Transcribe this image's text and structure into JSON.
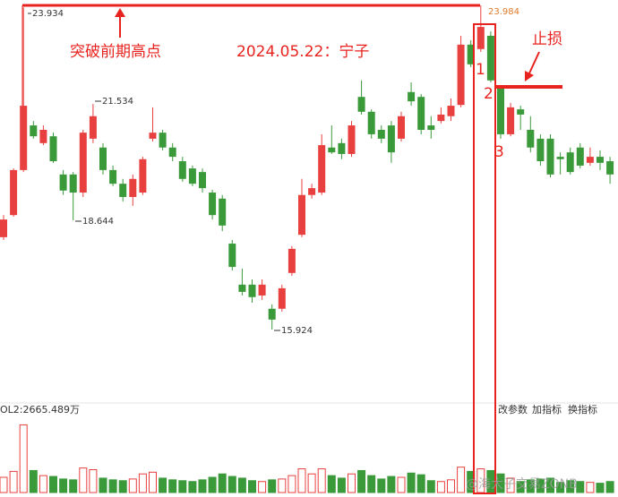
{
  "chart_data": {
    "type": "candlestick",
    "open": [
      18.22,
      18.77,
      19.89,
      21.0,
      20.56,
      20.73,
      19.78,
      19.78,
      19.33,
      20.67,
      20.45,
      19.89,
      19.55,
      19.22,
      19.33,
      20.67,
      20.82,
      20.45,
      20.11,
      19.93,
      19.84,
      19.33,
      19.18,
      18.06,
      17.04,
      17.04,
      16.77,
      16.44,
      16.44,
      17.33,
      18.28,
      19.27,
      19.33,
      20.45,
      20.56,
      20.29,
      21.71,
      21.34,
      20.89,
      21.0,
      20.67,
      21.83,
      21.71,
      21.0,
      21.11,
      21.23,
      21.51,
      23.01,
      22.9,
      23.23,
      21.94,
      20.78,
      21.4,
      20.89,
      20.67,
      20.67,
      20.22,
      20.33,
      20.45,
      20.07,
      20.22,
      20.11
    ],
    "high": [
      18.77,
      19.93,
      23.934,
      21.11,
      21.0,
      20.82,
      19.89,
      19.84,
      20.89,
      21.534,
      20.56,
      20.0,
      19.67,
      19.78,
      20.22,
      21.45,
      20.89,
      20.56,
      20.22,
      20.0,
      19.93,
      19.4,
      19.27,
      18.15,
      17.44,
      17.17,
      17.17,
      16.55,
      17.04,
      18.0,
      19.67,
      19.55,
      20.78,
      21.0,
      20.67,
      21.11,
      22.12,
      21.4,
      21.0,
      21.11,
      21.34,
      22.07,
      21.78,
      21.23,
      21.45,
      21.67,
      23.23,
      23.12,
      23.984,
      23.34,
      22.0,
      21.56,
      21.49,
      21.23,
      20.78,
      20.78,
      20.33,
      20.45,
      20.56,
      20.45,
      20.38,
      20.22
    ],
    "low": [
      18.15,
      18.73,
      19.84,
      20.67,
      20.51,
      20.07,
      19.27,
      18.644,
      19.22,
      20.56,
      19.78,
      19.49,
      19.11,
      19.0,
      19.27,
      20.6,
      20.38,
      20.11,
      19.6,
      19.49,
      19.33,
      18.66,
      18.37,
      17.39,
      16.77,
      16.59,
      16.66,
      15.924,
      16.37,
      17.26,
      18.22,
      19.18,
      19.27,
      20.29,
      20.16,
      20.22,
      21.27,
      20.67,
      20.56,
      20.07,
      20.6,
      21.49,
      20.78,
      20.67,
      21.05,
      21.11,
      21.45,
      22.45,
      22.83,
      22.07,
      20.67,
      20.73,
      20.89,
      20.33,
      20.0,
      19.71,
      19.78,
      19.78,
      19.93,
      20.0,
      19.89,
      19.55
    ],
    "close": [
      18.66,
      19.89,
      21.49,
      20.73,
      20.89,
      20.11,
      19.38,
      19.33,
      20.82,
      21.23,
      19.89,
      19.55,
      19.22,
      19.67,
      20.16,
      20.82,
      20.45,
      20.22,
      19.67,
      19.55,
      19.44,
      18.77,
      18.51,
      17.48,
      16.86,
      16.73,
      17.04,
      16.17,
      16.95,
      17.93,
      19.27,
      19.44,
      20.51,
      20.33,
      20.29,
      21.0,
      21.34,
      20.78,
      20.67,
      20.33,
      21.23,
      21.6,
      20.89,
      20.89,
      21.27,
      21.49,
      23.01,
      22.52,
      23.45,
      22.12,
      20.78,
      21.45,
      21.27,
      20.45,
      20.11,
      19.78,
      20.16,
      19.84,
      20.0,
      20.22,
      20.07,
      19.78
    ],
    "volume": [
      1800,
      2500,
      8000,
      2600,
      2000,
      1900,
      1600,
      1500,
      2900,
      2700,
      1700,
      1500,
      1400,
      1600,
      2200,
      2400,
      1700,
      1500,
      1400,
      1300,
      1500,
      1800,
      2200,
      1900,
      1700,
      1400,
      1300,
      1500,
      1600,
      2000,
      2800,
      2200,
      2800,
      2000,
      1700,
      2200,
      2600,
      2000,
      1600,
      1900,
      1800,
      2300,
      2100,
      1400,
      1300,
      1500,
      3000,
      2500,
      2800,
      2600,
      2200,
      1700,
      1300,
      1500,
      1600,
      1700,
      1200,
      1400,
      1300,
      1200,
      1100,
      1300
    ],
    "ylim": [
      15.21,
      24.12
    ],
    "volume_ylim": [
      0,
      9000
    ],
    "up_color": "#e8403f",
    "down_color": "#3a9a3a",
    "volume_label": "OL2:2665.489万",
    "annotation_title": "突破前期高点",
    "annotation_date": "2024.05.22：宁子",
    "annotation_stop": "止损",
    "markers": [
      "1",
      "2",
      "3"
    ]
  },
  "controls": [
    "改参数",
    "加指标",
    "换指标"
  ],
  "watermark": "@海大子交易ZONB"
}
